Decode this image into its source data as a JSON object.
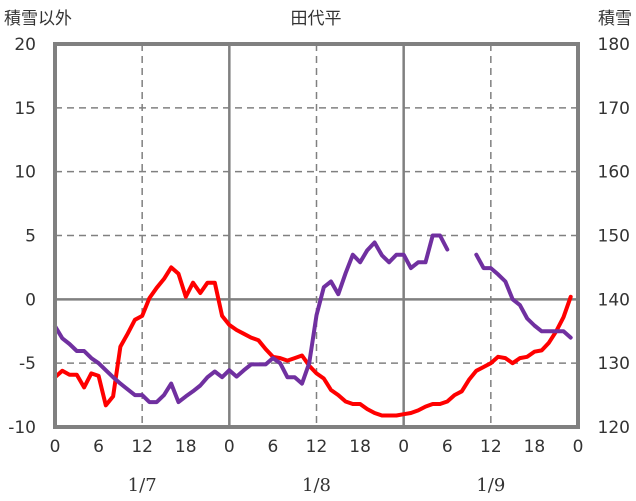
{
  "chart_data": {
    "type": "line",
    "title": "田代平",
    "ylabel_left": "積雪以外",
    "ylabel_right": "積雪",
    "ylim_left": [
      -10,
      20
    ],
    "ylim_right": [
      120,
      180
    ],
    "yticks_left": [
      20,
      15,
      10,
      5,
      0,
      -5,
      -10
    ],
    "yticks_right": [
      180,
      170,
      160,
      150,
      140,
      130,
      120
    ],
    "xlim_hours": [
      0,
      72
    ],
    "xtick_labels": [
      "0",
      "6",
      "12",
      "18",
      "0",
      "6",
      "12",
      "18",
      "0",
      "6",
      "12",
      "18",
      "0"
    ],
    "date_labels": [
      {
        "text": "1/7",
        "hour": 12
      },
      {
        "text": "1/8",
        "hour": 36
      },
      {
        "text": "1/9",
        "hour": 60
      }
    ],
    "grid": true,
    "series": [
      {
        "name": "積雪以外",
        "axis": "left",
        "color": "#ff0000",
        "values": [
          -6.1,
          -5.6,
          -5.9,
          -5.9,
          -6.9,
          -5.8,
          -6.0,
          -8.3,
          -7.6,
          -3.7,
          -2.7,
          -1.6,
          -1.3,
          0.1,
          0.9,
          1.6,
          2.5,
          2.0,
          0.2,
          1.3,
          0.5,
          1.3,
          1.3,
          -1.3,
          -2.0,
          -2.4,
          -2.7,
          -3.0,
          -3.2,
          -3.9,
          -4.5,
          -4.6,
          -4.8,
          -4.6,
          -4.4,
          -5.2,
          -5.8,
          -6.2,
          -7.1,
          -7.5,
          -8.0,
          -8.2,
          -8.2,
          -8.6,
          -8.9,
          -9.1,
          -9.1,
          -9.1,
          -9.0,
          -8.9,
          -8.7,
          -8.4,
          -8.2,
          -8.2,
          -8.0,
          -7.5,
          -7.2,
          -6.3,
          -5.6,
          -5.3,
          -5.0,
          -4.5,
          -4.6,
          -5.0,
          -4.6,
          -4.5,
          -4.1,
          -4.0,
          -3.4,
          -2.5,
          -1.4,
          0.2
        ]
      },
      {
        "name": "積雪",
        "axis": "right",
        "color": "#7030a0",
        "values": [
          135.8,
          133.9,
          133.0,
          131.9,
          131.9,
          130.8,
          130.0,
          128.9,
          127.8,
          126.8,
          125.9,
          125.0,
          125.0,
          123.9,
          123.9,
          125.0,
          126.8,
          123.9,
          124.8,
          125.6,
          126.5,
          127.8,
          128.7,
          127.8,
          128.9,
          127.9,
          128.9,
          129.8,
          129.8,
          129.8,
          130.8,
          130.0,
          127.8,
          127.8,
          126.8,
          130.0,
          137.5,
          141.9,
          142.8,
          140.8,
          144.1,
          147.0,
          145.8,
          147.7,
          148.9,
          146.9,
          145.8,
          147.0,
          147.0,
          144.9,
          145.8,
          145.8,
          150.0,
          150.0,
          147.8,
          null,
          null,
          null,
          147.0,
          144.9,
          144.9,
          143.9,
          142.8,
          140.0,
          139.1,
          137.0,
          135.9,
          135.0,
          135.0,
          135.0,
          135.0,
          134.0
        ]
      }
    ]
  }
}
